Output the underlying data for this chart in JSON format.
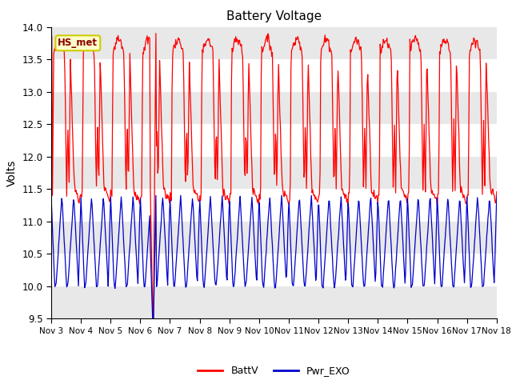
{
  "title": "Battery Voltage",
  "ylabel": "Volts",
  "annotation": "HS_met",
  "ylim": [
    9.5,
    14.0
  ],
  "yticks": [
    9.5,
    10.0,
    10.5,
    11.0,
    11.5,
    12.0,
    12.5,
    13.0,
    13.5,
    14.0
  ],
  "x_labels": [
    "Nov 3",
    "Nov 4",
    "Nov 5",
    "Nov 6",
    "Nov 7",
    "Nov 8",
    "Nov 9",
    "Nov 10",
    "Nov 11",
    "Nov 12",
    "Nov 13",
    "Nov 14",
    "Nov 15",
    "Nov 16",
    "Nov 17",
    "Nov 18"
  ],
  "legend_labels": [
    "BattV",
    "Pwr_EXO"
  ],
  "line_colors": [
    "#ff0000",
    "#0000cc"
  ],
  "background_color": "#ffffff",
  "band_colors": [
    "#e8e8e8",
    "#f8f8f8"
  ],
  "annotation_bg": "#ffffcc",
  "annotation_fg": "#8b0000",
  "annotation_border": "#cccc00"
}
